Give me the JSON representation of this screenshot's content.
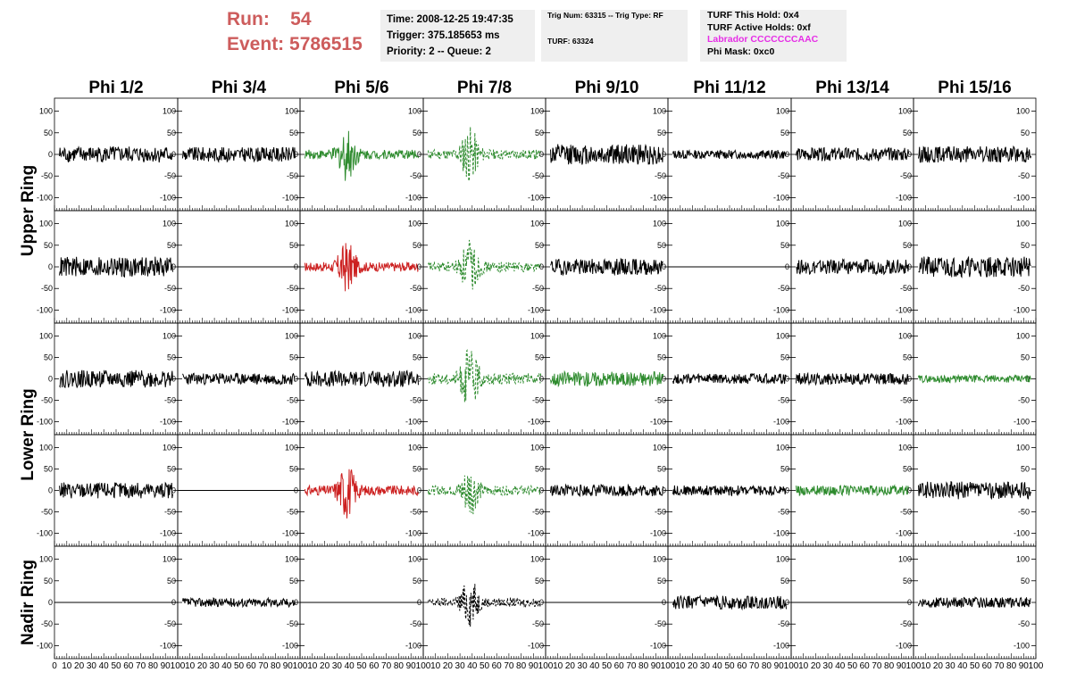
{
  "header": {
    "run_label": "Run:",
    "run_value": "54",
    "event_label": "Event:",
    "event_value": "5786515",
    "time": "Time: 2008-12-25 19:47:35",
    "trigger": "Trigger: 375.185653 ms",
    "priority": "Priority: 2 -- Queue: 2",
    "trig_num": "Trig Num: 63315 -- Trig Type: RF",
    "turf": "TURF: 63324",
    "turf_this_hold": "TURF This Hold: 0x4",
    "turf_active_holds": "TURF Active Holds: 0xf",
    "labrador": "Labrador CCCCCCCAAC",
    "phi_mask": "Phi Mask: 0xc0"
  },
  "colors": {
    "run_text": "#cd5c5c",
    "box_bg": "#efefef",
    "labrador_text": "#e62ee6",
    "trace_black": "#000000",
    "trace_green": "#2e8b2e",
    "trace_red": "#cc2020"
  },
  "chart_data": {
    "type": "line",
    "columns": [
      "Phi 1/2",
      "Phi 3/4",
      "Phi 5/6",
      "Phi 7/8",
      "Phi 9/10",
      "Phi 11/12",
      "Phi 13/14",
      "Phi 15/16"
    ],
    "row_labels": [
      {
        "text": "Upper Ring",
        "rows": [
          0,
          1
        ]
      },
      {
        "text": "Lower Ring",
        "rows": [
          2,
          3
        ]
      },
      {
        "text": "Nadir Ring",
        "rows": [
          4,
          4
        ]
      }
    ],
    "xlim": [
      0,
      100
    ],
    "ylim": [
      -130,
      130
    ],
    "yticks": [
      100,
      50,
      0,
      -50,
      -100
    ],
    "xticks": [
      0,
      10,
      20,
      30,
      40,
      50,
      60,
      70,
      80,
      90,
      100
    ],
    "grid": false,
    "panels": [
      [
        {
          "c": "black",
          "a": 22,
          "s": 1
        },
        {
          "c": "black",
          "a": 20,
          "s": 2
        },
        {
          "c": "green",
          "a": 28,
          "s": 3,
          "b": true
        },
        {
          "c": "green",
          "a": 30,
          "s": 4,
          "b": true,
          "d": true
        },
        {
          "c": "black",
          "a": 28,
          "s": 5
        },
        {
          "c": "black",
          "a": 12,
          "s": 6
        },
        {
          "c": "black",
          "a": 18,
          "s": 7
        },
        {
          "c": "black",
          "a": 22,
          "s": 8
        }
      ],
      [
        {
          "c": "black",
          "a": 28,
          "s": 9
        },
        {
          "c": "flat",
          "a": 0,
          "s": 0
        },
        {
          "c": "red",
          "a": 28,
          "s": 10,
          "b": true
        },
        {
          "c": "green",
          "a": 30,
          "s": 11,
          "b": true,
          "d": true
        },
        {
          "c": "black",
          "a": 22,
          "s": 12
        },
        {
          "c": "flat",
          "a": 0,
          "s": 0
        },
        {
          "c": "black",
          "a": 20,
          "s": 13
        },
        {
          "c": "black",
          "a": 28,
          "s": 14
        }
      ],
      [
        {
          "c": "black",
          "a": 24,
          "s": 15
        },
        {
          "c": "black",
          "a": 16,
          "s": 16
        },
        {
          "c": "black",
          "a": 22,
          "s": 17
        },
        {
          "c": "green",
          "a": 34,
          "s": 18,
          "b": true,
          "d": true
        },
        {
          "c": "green",
          "a": 20,
          "s": 19
        },
        {
          "c": "black",
          "a": 14,
          "s": 20
        },
        {
          "c": "black",
          "a": 16,
          "s": 21
        },
        {
          "c": "green",
          "a": 10,
          "s": 22
        }
      ],
      [
        {
          "c": "black",
          "a": 22,
          "s": 23
        },
        {
          "c": "flat",
          "a": 0,
          "s": 0
        },
        {
          "c": "red",
          "a": 30,
          "s": 24,
          "b": true
        },
        {
          "c": "green",
          "a": 28,
          "s": 25,
          "b": true,
          "d": true
        },
        {
          "c": "black",
          "a": 16,
          "s": 26
        },
        {
          "c": "black",
          "a": 14,
          "s": 27
        },
        {
          "c": "green",
          "a": 14,
          "s": 28
        },
        {
          "c": "black",
          "a": 24,
          "s": 29
        }
      ],
      [
        {
          "c": "flat",
          "a": 0,
          "s": 0
        },
        {
          "c": "black",
          "a": 12,
          "s": 30
        },
        {
          "c": "flat",
          "a": 0,
          "s": 0
        },
        {
          "c": "black",
          "a": 26,
          "s": 31,
          "b": true,
          "d": true
        },
        {
          "c": "flat",
          "a": 0,
          "s": 0
        },
        {
          "c": "black",
          "a": 18,
          "s": 32
        },
        {
          "c": "flat",
          "a": 0,
          "s": 0
        },
        {
          "c": "black",
          "a": 14,
          "s": 33
        }
      ]
    ]
  }
}
